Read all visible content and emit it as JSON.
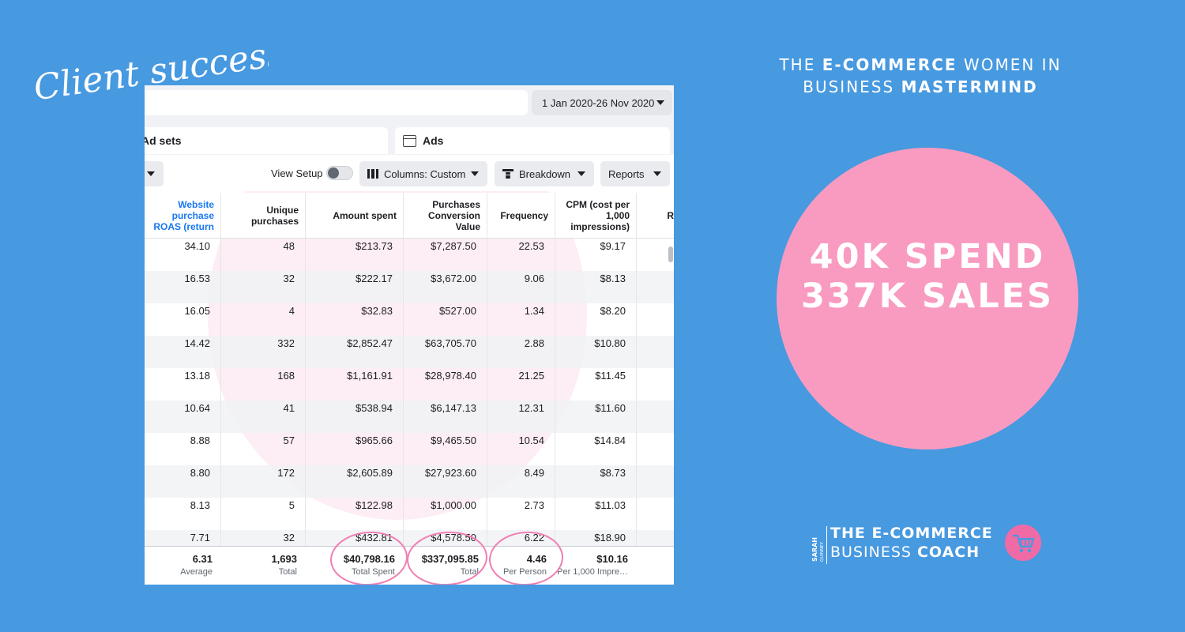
{
  "header": {
    "script_title": "Client success",
    "mastermind_line1_pre": "THE ",
    "mastermind_line1_bold": "E-COMMERCE",
    "mastermind_line1_post": " WOMEN IN",
    "mastermind_line2_pre": "BUSINESS ",
    "mastermind_line2_bold": "MASTERMIND"
  },
  "highlight": {
    "line1": "40K SPEND",
    "line2": "337K SALES",
    "circle_color": "#f99bc0"
  },
  "brand": {
    "sarah": "SARAH",
    "quinney": "QUINNEY",
    "line1": "THE E-COMMERCE",
    "line2_pre": "BUSINESS ",
    "line2_bold": "COACH",
    "icon": "shopping-cart-icon"
  },
  "ads_manager": {
    "date_range": "1 Jan 2020-26 Nov 2020",
    "tabs": {
      "ad_sets": "Ad sets",
      "ads": "Ads"
    },
    "toolbar": {
      "view_setup": "View Setup",
      "columns": "Columns: Custom",
      "breakdown": "Breakdown",
      "reports": "Reports"
    },
    "columns": [
      "Website purchase ROAS (return",
      "Unique purchases",
      "Amount spent",
      "Purchases Conversion Value",
      "Frequency",
      "CPM (cost per 1,000 impressions)"
    ],
    "partial_column": "R",
    "rows": [
      [
        "34.10",
        "48",
        "$213.73",
        "$7,287.50",
        "22.53",
        "$9.17"
      ],
      [
        "16.53",
        "32",
        "$222.17",
        "$3,672.00",
        "9.06",
        "$8.13"
      ],
      [
        "16.05",
        "4",
        "$32.83",
        "$527.00",
        "1.34",
        "$8.20"
      ],
      [
        "14.42",
        "332",
        "$2,852.47",
        "$63,705.70",
        "2.88",
        "$10.80"
      ],
      [
        "13.18",
        "168",
        "$1,161.91",
        "$28,978.40",
        "21.25",
        "$11.45"
      ],
      [
        "10.64",
        "41",
        "$538.94",
        "$6,147.13",
        "12.31",
        "$11.60"
      ],
      [
        "8.88",
        "57",
        "$965.66",
        "$9,465.50",
        "10.54",
        "$14.84"
      ],
      [
        "8.80",
        "172",
        "$2,605.89",
        "$27,923.60",
        "8.49",
        "$8.73"
      ],
      [
        "8.13",
        "5",
        "$122.98",
        "$1,000.00",
        "2.73",
        "$11.03"
      ],
      [
        "7.71",
        "32",
        "$432.81",
        "$4,578.50",
        "6.22",
        "$18.90"
      ]
    ],
    "totals": [
      {
        "value": "6.31",
        "label": "Average"
      },
      {
        "value": "1,693",
        "label": "Total"
      },
      {
        "value": "$40,798.16",
        "label": "Total Spent"
      },
      {
        "value": "$337,095.85",
        "label": "Total"
      },
      {
        "value": "4.46",
        "label": "Per Person"
      },
      {
        "value": "$10.16",
        "label": "Per 1,000 Impre…"
      }
    ],
    "circle_color": "#ef7fb3"
  }
}
